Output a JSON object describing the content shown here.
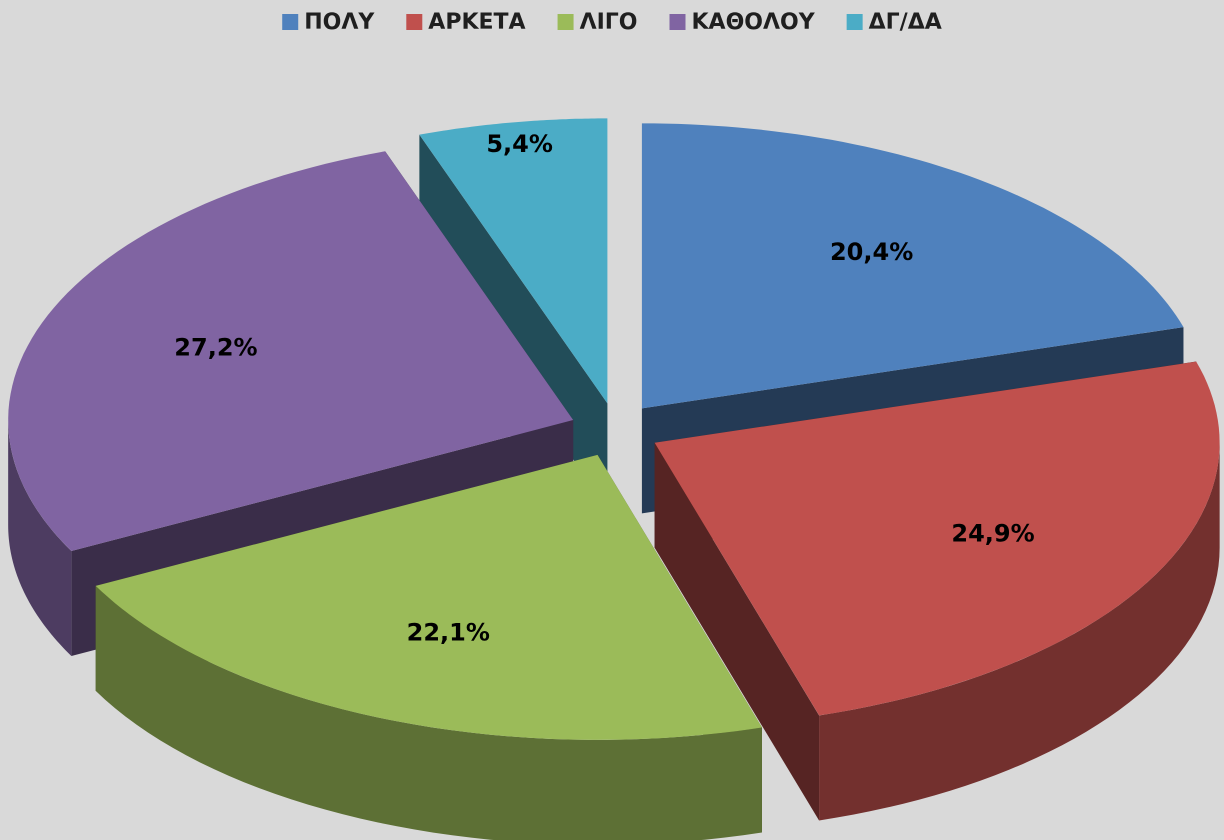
{
  "chart_data": {
    "type": "pie",
    "categories": [
      "ΠΟΛΥ",
      "ΑΡΚΕΤΑ",
      "ΛΙΓΟ",
      "ΚΑΘΟΛΟΥ",
      "ΔΓ/ΔΑ"
    ],
    "values": [
      20.4,
      24.9,
      22.1,
      27.2,
      5.4
    ],
    "value_labels": [
      "20,4%",
      "24,9%",
      "22,1%",
      "27,2%",
      "5,4%"
    ],
    "colors": [
      "#4f81bd",
      "#c0504d",
      "#9bbb59",
      "#8064a2",
      "#4bacc6"
    ],
    "legend": "top"
  }
}
